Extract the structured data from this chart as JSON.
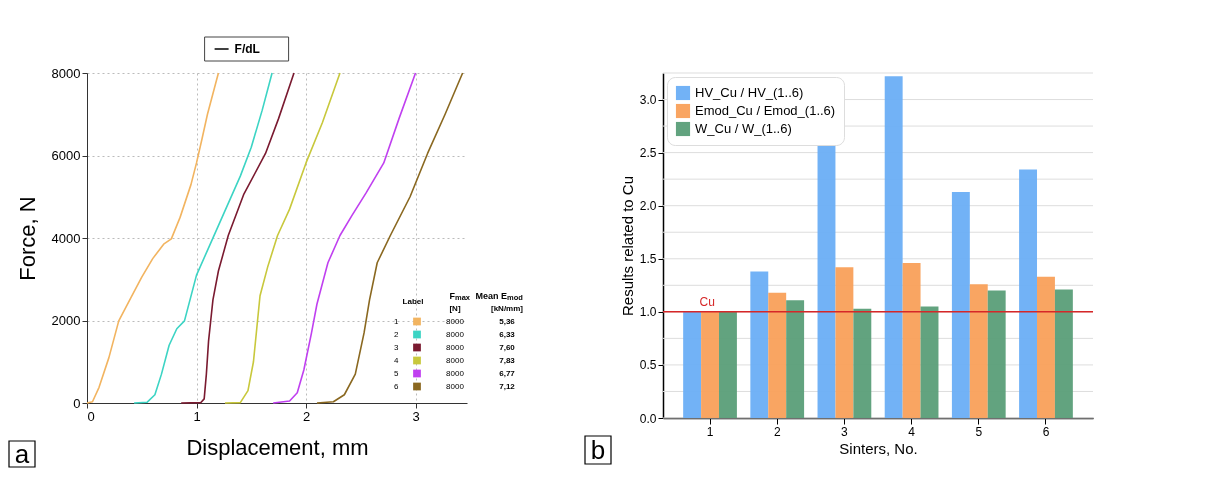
{
  "chart_data": [
    {
      "type": "line",
      "xlabel": "Displacement, mm",
      "ylabel": "Force, N",
      "xlim": [
        0,
        3.47
      ],
      "ylim": [
        0,
        8000
      ],
      "xticks": [
        0,
        1,
        2,
        3
      ],
      "yticks": [
        0,
        2000,
        4000,
        6000,
        8000
      ],
      "grid": true,
      "line_style": "solid",
      "marker": "none",
      "legend": "bottom right",
      "legend_title": "Label",
      "annotations": [
        "F/dL",
        "a",
        "F$_{max}$",
        "Mean E$_{mod}$",
        "[N]",
        "[kN/mm]",
        "8000",
        "8000",
        "8000",
        "8000",
        "8000",
        "8000",
        "5,36",
        "6,33",
        "7,60",
        "7,83",
        "6,77",
        "7,12"
      ],
      "series": [
        {
          "name": "1",
          "color": "#f2b460",
          "x": [
            0,
            0.05,
            0.11,
            0.2,
            0.29,
            0.4,
            0.5,
            0.6,
            0.7,
            0.77,
            0.85,
            0.95,
            1.0,
            1.05,
            1.1,
            1.2
          ],
          "values": [
            0,
            30,
            380,
            1100,
            1990,
            2550,
            3050,
            3500,
            3850,
            3980,
            4500,
            5300,
            5820,
            6400,
            7000,
            8000
          ]
        },
        {
          "name": "2",
          "color": "#3cd4c4",
          "x": [
            0.43,
            0.55,
            0.62,
            0.68,
            0.75,
            0.82,
            0.89,
            1.0,
            1.1,
            1.2,
            1.3,
            1.4,
            1.5,
            1.6,
            1.69
          ],
          "values": [
            0,
            20,
            200,
            700,
            1400,
            1800,
            1990,
            3100,
            3700,
            4300,
            4900,
            5500,
            6200,
            7100,
            8000
          ]
        },
        {
          "name": "3",
          "color": "#7a1a30",
          "x": [
            0.86,
            1.04,
            1.07,
            1.09,
            1.11,
            1.13,
            1.15,
            1.2,
            1.29,
            1.43,
            1.63,
            1.75,
            1.89
          ],
          "values": [
            0,
            10,
            100,
            700,
            1500,
            2000,
            2500,
            3200,
            4060,
            5050,
            6050,
            6900,
            8000
          ]
        },
        {
          "name": "4",
          "color": "#c8c83c",
          "x": [
            1.26,
            1.4,
            1.47,
            1.52,
            1.55,
            1.58,
            1.65,
            1.74,
            1.85,
            2.0,
            2.15,
            2.31
          ],
          "values": [
            0,
            10,
            300,
            1000,
            1800,
            2600,
            3300,
            4060,
            4700,
            5820,
            6800,
            8000
          ]
        },
        {
          "name": "5",
          "color": "#c040f0",
          "x": [
            1.7,
            1.85,
            1.92,
            1.98,
            2.05,
            2.1,
            2.2,
            2.31,
            2.42,
            2.55,
            2.71,
            2.85,
            3.0
          ],
          "values": [
            0,
            50,
            250,
            800,
            1700,
            2400,
            3400,
            4060,
            4550,
            5100,
            5820,
            6900,
            8000
          ]
        },
        {
          "name": "6",
          "color": "#8a6820",
          "x": [
            2.1,
            2.25,
            2.35,
            2.45,
            2.53,
            2.58,
            2.65,
            2.77,
            2.95,
            3.11,
            3.27,
            3.43
          ],
          "values": [
            0,
            30,
            200,
            700,
            1700,
            2500,
            3400,
            4060,
            5000,
            6050,
            7000,
            8000
          ]
        }
      ]
    },
    {
      "type": "bar",
      "xlabel": "Sinters, No.",
      "ylabel": "Results related to Cu",
      "categories": [
        "1",
        "2",
        "3",
        "4",
        "5",
        "6"
      ],
      "ylim": [
        0,
        3.25
      ],
      "yticks": [
        {
          "value": 0,
          "label": "0.0"
        },
        {
          "value": 0.25,
          "label": null
        },
        {
          "value": 0.5,
          "label": "0.5"
        },
        {
          "value": 0.75,
          "label": null
        },
        {
          "value": 1,
          "label": "1.0"
        },
        {
          "value": 1.25,
          "label": null
        },
        {
          "value": 1.5,
          "label": "1.5"
        },
        {
          "value": 1.75,
          "label": null
        },
        {
          "value": 2,
          "label": "2.0"
        },
        {
          "value": 2.25,
          "label": null
        },
        {
          "value": 2.5,
          "label": "2.5"
        },
        {
          "value": 2.75,
          "label": null
        },
        {
          "value": 3,
          "label": "3.0"
        },
        {
          "value": 3.25,
          "label": null
        }
      ],
      "grid": "y",
      "legend": "top left",
      "annotations": [
        "b"
      ],
      "ref_lines": [
        {
          "axis": "y",
          "value": 1,
          "label": "Cu",
          "color": "#d62728"
        }
      ],
      "series": [
        {
          "name": "HV_Cu / HV_(1..6)",
          "color": "#6aaef5",
          "values": [
            1.0,
            1.38,
            2.59,
            3.22,
            2.13,
            2.34
          ]
        },
        {
          "name": "Emod_Cu / Emod_(1..6)",
          "color": "#f9a05a",
          "values": [
            1.0,
            1.18,
            1.42,
            1.46,
            1.26,
            1.33
          ]
        },
        {
          "name": "W_Cu / W_(1..6)",
          "color": "#5a9e78",
          "values": [
            1.0,
            1.11,
            1.03,
            1.05,
            1.2,
            1.21
          ]
        }
      ]
    }
  ]
}
